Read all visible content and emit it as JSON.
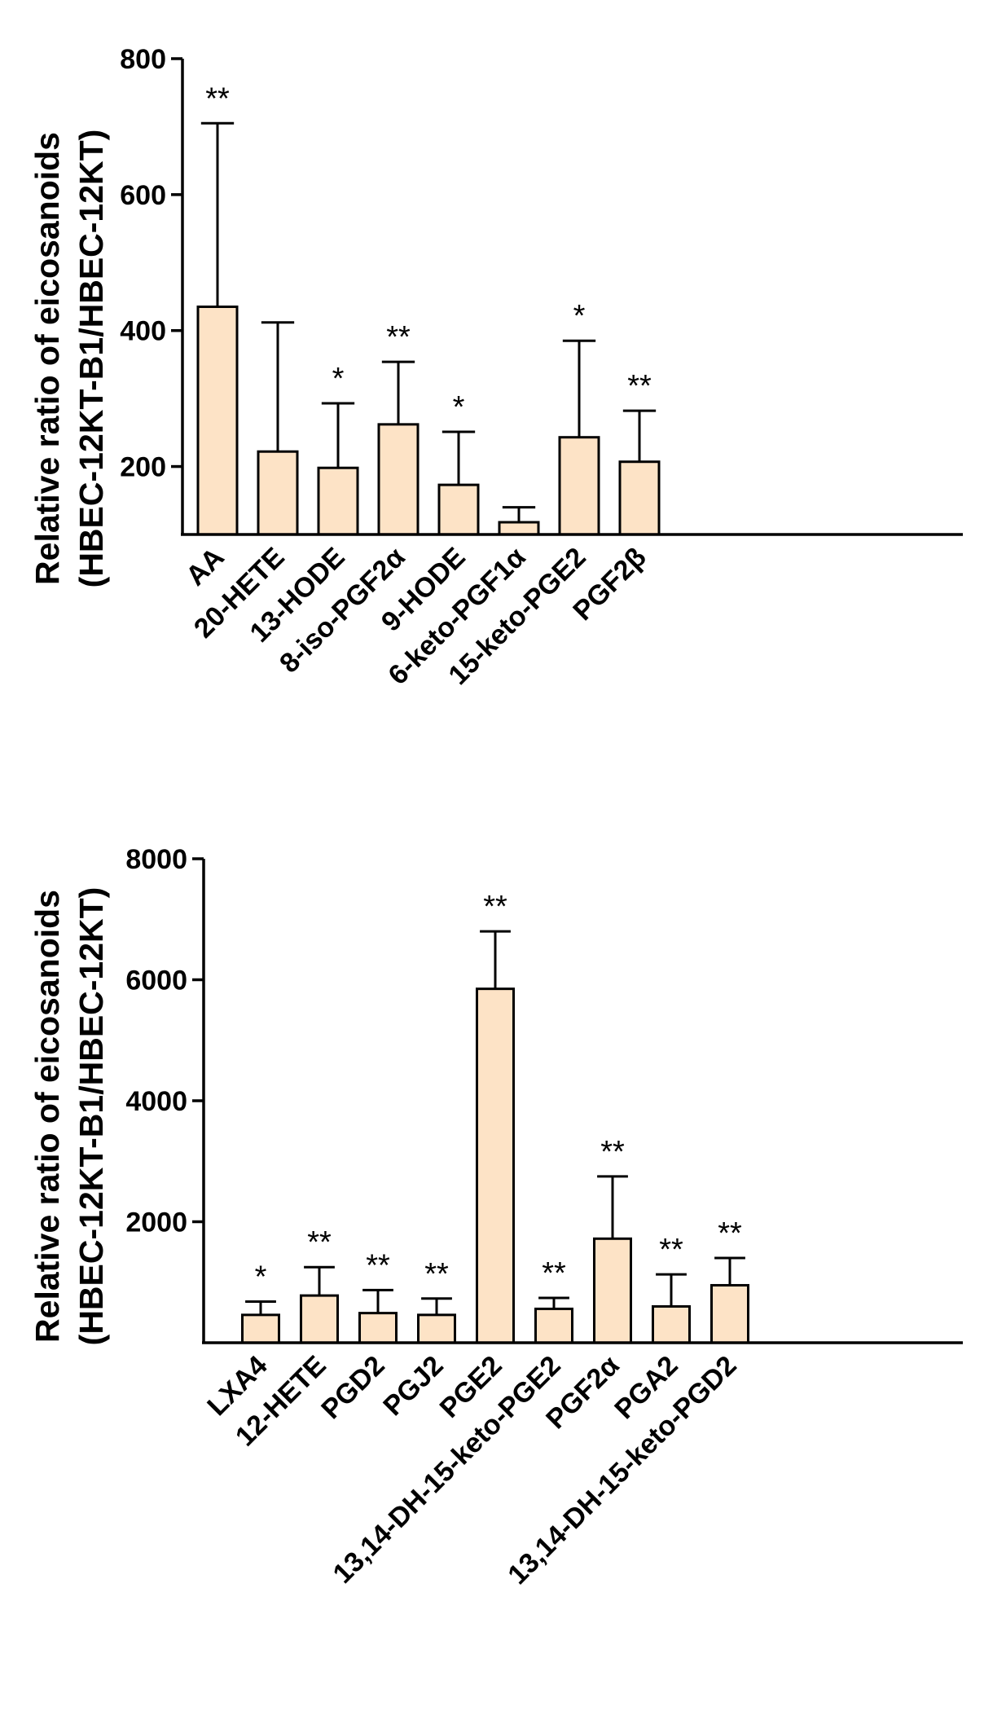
{
  "chart_data": [
    {
      "type": "bar",
      "title": "",
      "ylabel_line1": "Relative ratio of eicosanoids",
      "ylabel_line2": "(HBEC-12KT-B1/HBEC-12KT)",
      "xlabel": "",
      "ylim": [
        100,
        800
      ],
      "yticks": [
        200,
        400,
        600,
        800
      ],
      "ytick_labels": [
        "200",
        "400",
        "600",
        "800"
      ],
      "categories": [
        "AA",
        "20-HETE",
        "13-HODE",
        "8-iso-PGF2α",
        "9-HODE",
        "6-keto-PGF1α",
        "15-keto-PGE2",
        "PGF2β"
      ],
      "values": [
        435,
        222,
        198,
        262,
        173,
        118,
        243,
        207
      ],
      "errors": [
        270,
        190,
        95,
        92,
        78,
        22,
        142,
        75
      ],
      "significance": [
        "**",
        "",
        "*",
        "**",
        "*",
        "",
        "*",
        "**"
      ]
    },
    {
      "type": "bar",
      "title": "",
      "ylabel_line1": "Relative ratio of eicosanoids",
      "ylabel_line2": "(HBEC-12KT-B1/HBEC-12KT)",
      "xlabel": "",
      "ylim": [
        0,
        8000
      ],
      "yticks": [
        2000,
        4000,
        6000,
        8000
      ],
      "ytick_labels": [
        "2000",
        "4000",
        "6000",
        "8000"
      ],
      "categories": [
        "LXA4",
        "12-HETE",
        "PGD2",
        "PGJ2",
        "PGE2",
        "13,14-DH-15-keto-PGE2",
        "PGF2α",
        "PGA2",
        "13,14-DH-15-keto-PGD2"
      ],
      "values": [
        460,
        780,
        490,
        460,
        5850,
        560,
        1720,
        600,
        950
      ],
      "errors": [
        220,
        470,
        380,
        270,
        950,
        180,
        1030,
        530,
        450
      ],
      "significance": [
        "*",
        "**",
        "**",
        "**",
        "**",
        "**",
        "**",
        "**",
        "**"
      ]
    }
  ]
}
